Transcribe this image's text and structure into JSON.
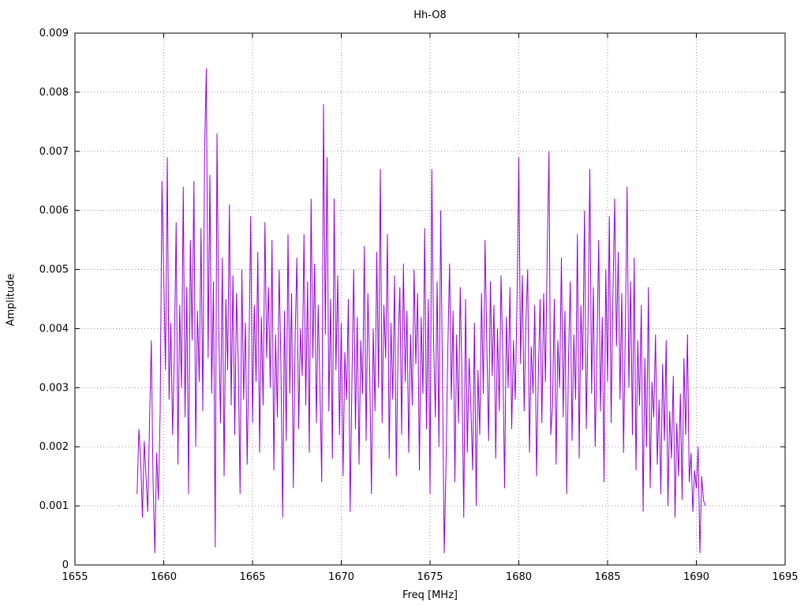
{
  "chart_data": {
    "type": "line",
    "title": "Hh-O8",
    "xlabel": "Freq [MHz]",
    "ylabel": "Amplitude",
    "xlim": [
      1655,
      1695
    ],
    "ylim": [
      0,
      0.009
    ],
    "xticks": [
      1655,
      1660,
      1665,
      1670,
      1675,
      1680,
      1685,
      1690,
      1695
    ],
    "xtick_labels": [
      "1655",
      "1660",
      "1665",
      "1670",
      "1675",
      "1680",
      "1685",
      "1690",
      "1695"
    ],
    "yticks": [
      0,
      0.001,
      0.002,
      0.003,
      0.004,
      0.005,
      0.006,
      0.007,
      0.008,
      0.009
    ],
    "ytick_labels": [
      "0",
      "0.001",
      "0.002",
      "0.003",
      "0.004",
      "0.005",
      "0.006",
      "0.007",
      "0.008",
      "0.009"
    ],
    "grid": "dotted",
    "grid_color": "#9a9a9a",
    "line_color": "#9400d3",
    "legend": "none",
    "series": [
      {
        "name": "Hh-O8",
        "x_start": 1658.5,
        "x_step": 0.1,
        "amplitude_scale": 0.0001,
        "values_1e4": [
          12,
          23,
          18,
          8,
          21,
          15,
          9,
          24,
          38,
          14,
          2,
          19,
          11,
          26,
          65,
          49,
          33,
          69,
          28,
          41,
          22,
          36,
          58,
          17,
          44,
          30,
          64,
          25,
          47,
          12,
          55,
          38,
          65,
          20,
          43,
          31,
          57,
          26,
          70,
          84,
          35,
          66,
          29,
          48,
          3,
          73,
          40,
          24,
          52,
          15,
          45,
          33,
          61,
          27,
          49,
          22,
          46,
          34,
          12,
          50,
          28,
          41,
          17,
          36,
          59,
          24,
          44,
          31,
          53,
          19,
          42,
          27,
          58,
          35,
          47,
          30,
          55,
          16,
          39,
          25,
          50,
          34,
          8,
          43,
          21,
          56,
          29,
          46,
          13,
          38,
          52,
          23,
          40,
          32,
          56,
          27,
          48,
          19,
          62,
          35,
          51,
          24,
          44,
          30,
          14,
          78,
          39,
          69,
          26,
          45,
          18,
          62,
          33,
          49,
          22,
          41,
          15,
          36,
          28,
          45,
          9,
          31,
          50,
          23,
          42,
          17,
          38,
          29,
          54,
          21,
          46,
          33,
          12,
          40,
          26,
          53,
          30,
          67,
          24,
          44,
          35,
          56,
          18,
          41,
          28,
          49,
          15,
          37,
          47,
          22,
          51,
          31,
          43,
          19,
          39,
          27,
          50,
          34,
          46,
          16,
          42,
          29,
          57,
          23,
          45,
          12,
          67,
          38,
          25,
          48,
          20,
          60,
          32,
          2,
          17,
          36,
          51,
          28,
          43,
          14,
          39,
          24,
          47,
          31,
          8,
          45,
          19,
          35,
          27,
          16,
          41,
          10,
          33,
          22,
          46,
          29,
          55,
          37,
          21,
          48,
          32,
          44,
          18,
          40,
          26,
          49,
          35,
          13,
          42,
          30,
          47,
          23,
          38,
          28,
          45,
          69,
          34,
          49,
          26,
          41,
          50,
          19,
          37,
          29,
          44,
          15,
          32,
          45,
          24,
          46,
          31,
          53,
          70,
          22,
          27,
          45,
          17,
          38,
          30,
          52,
          25,
          43,
          12,
          35,
          48,
          21,
          39,
          28,
          56,
          18,
          44,
          33,
          60,
          23,
          41,
          67,
          29,
          47,
          20,
          36,
          55,
          26,
          42,
          14,
          50,
          31,
          59,
          24,
          45,
          62,
          37,
          53,
          28,
          46,
          19,
          40,
          64,
          30,
          48,
          22,
          52,
          16,
          38,
          27,
          44,
          9,
          35,
          20,
          47,
          13,
          31,
          25,
          39,
          17,
          28,
          12,
          34,
          21,
          38,
          10,
          26,
          18,
          32,
          8,
          24,
          15,
          29,
          11,
          35,
          22,
          39,
          14,
          19,
          9,
          16,
          13,
          20,
          2,
          15,
          11,
          10
        ]
      }
    ]
  }
}
